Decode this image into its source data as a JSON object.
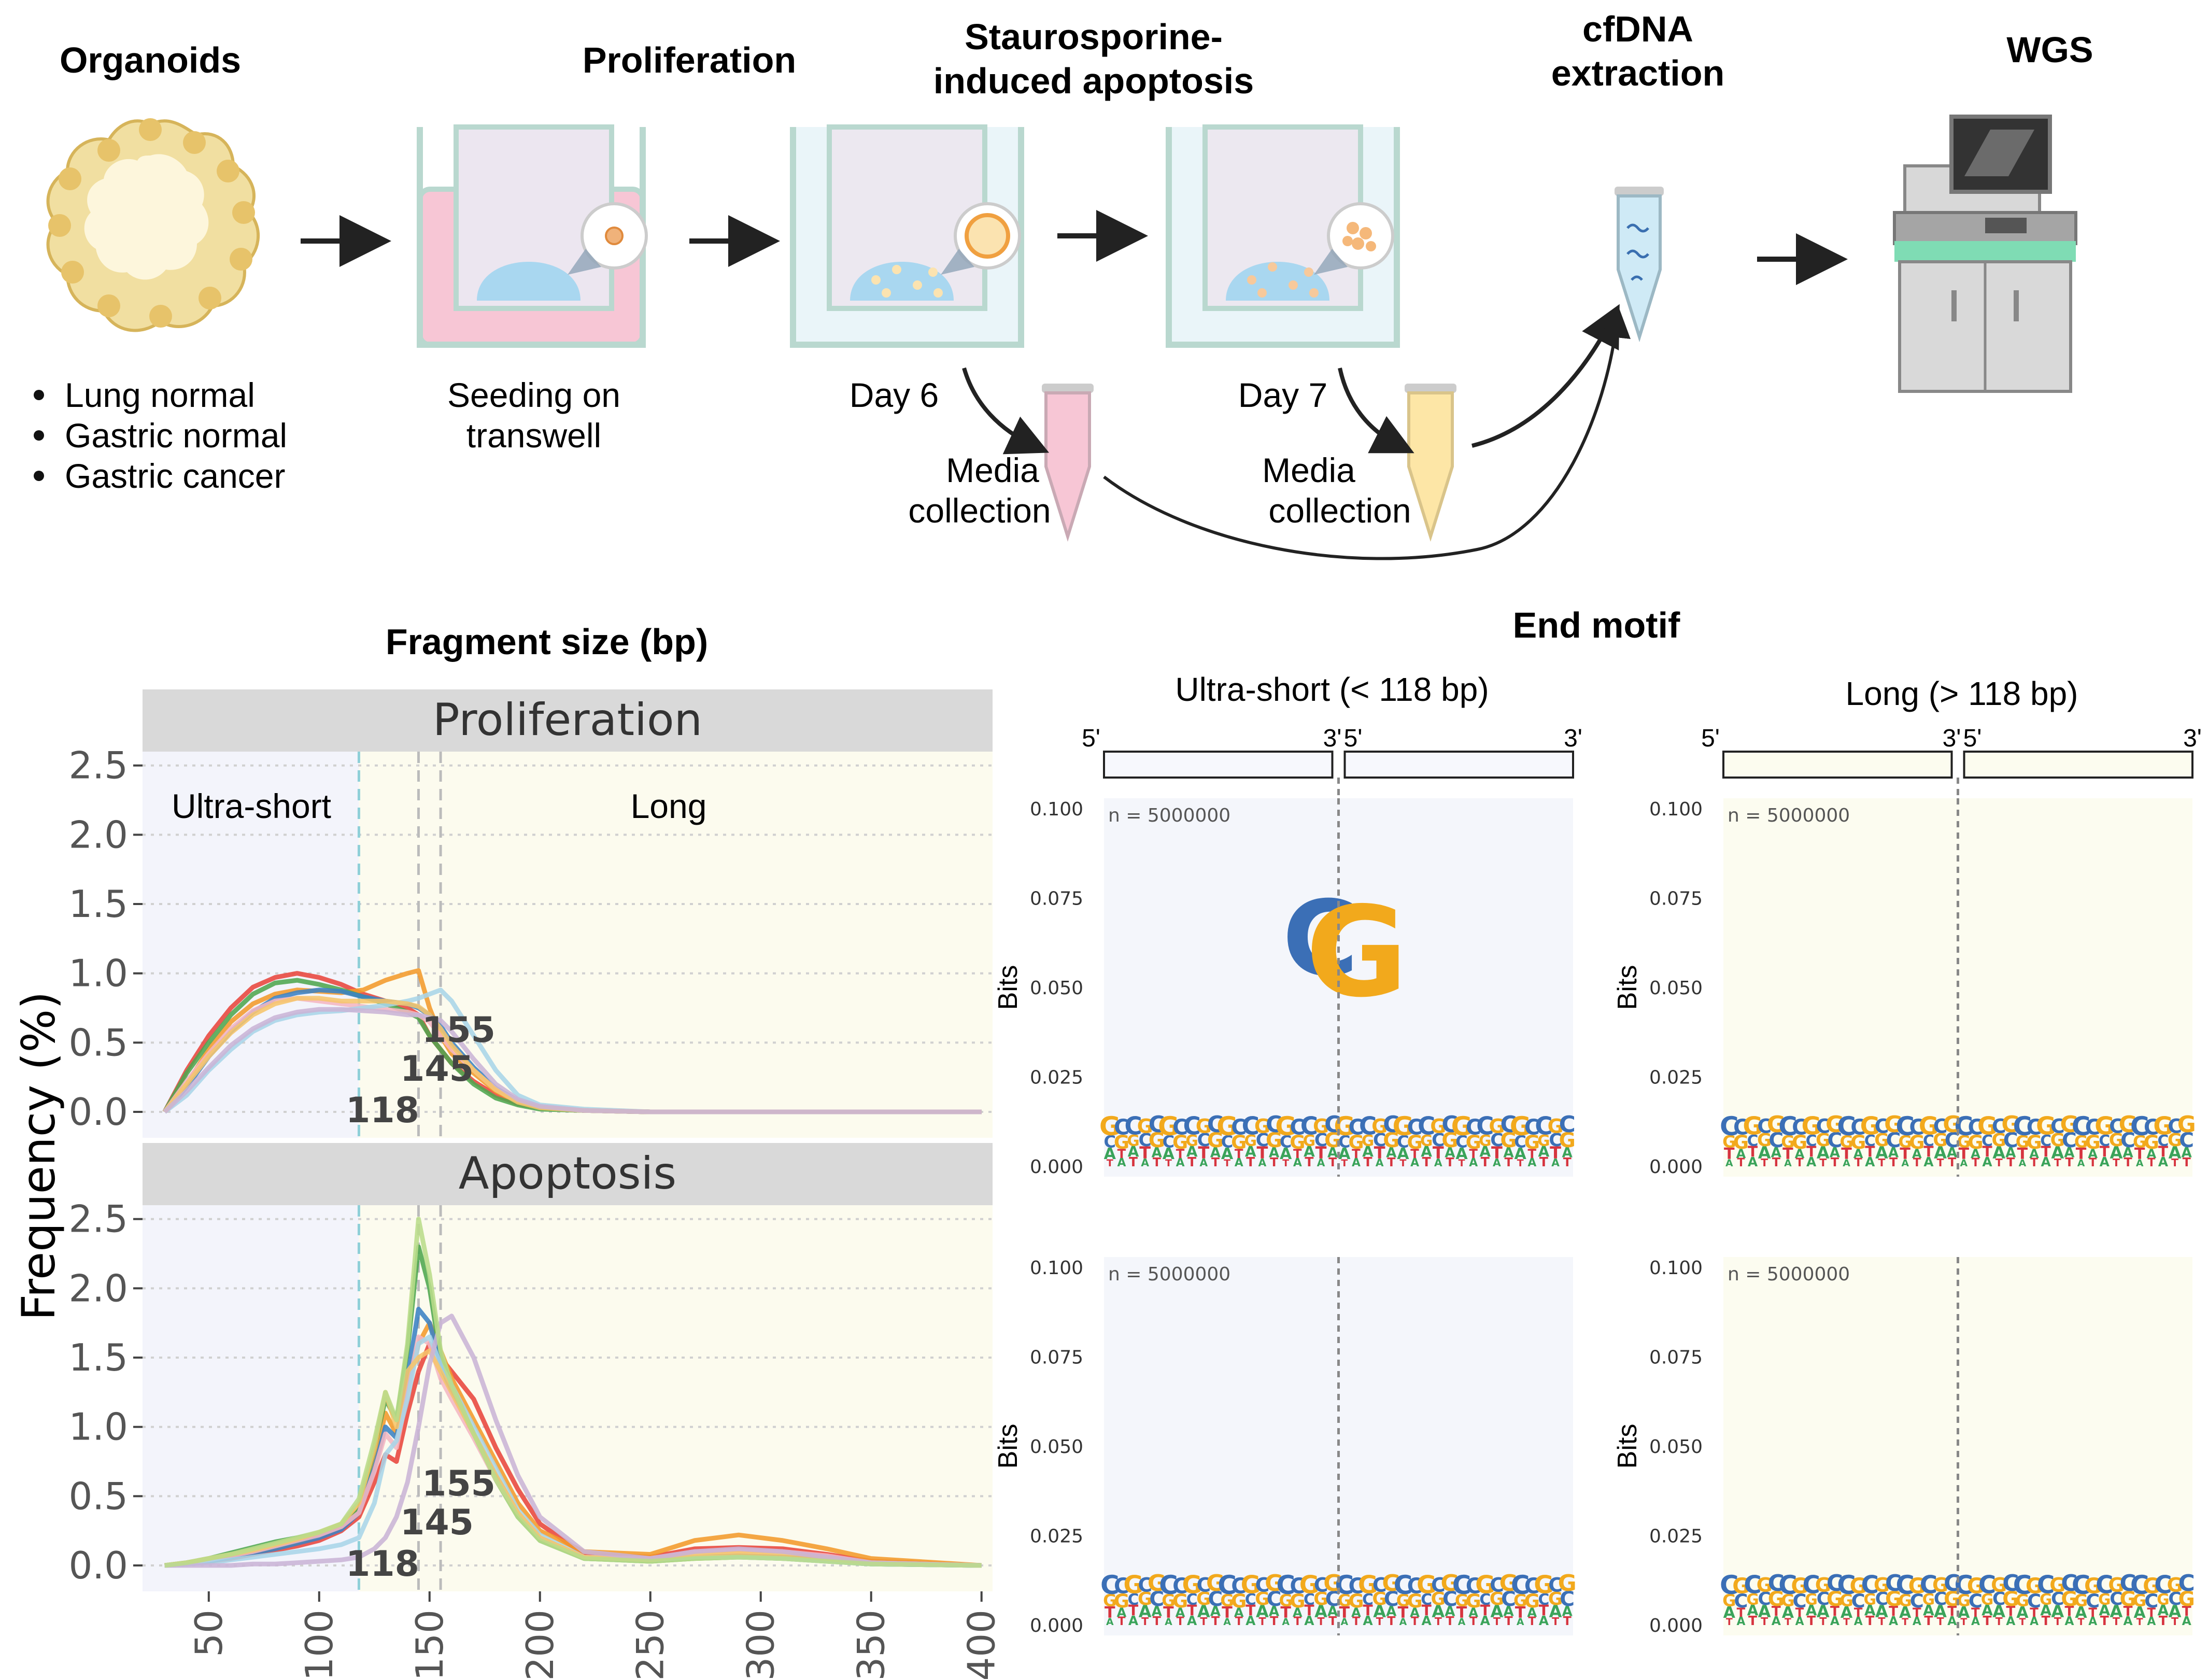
{
  "workflow": {
    "steps": [
      {
        "title": "Organoids"
      },
      {
        "title": "Proliferation",
        "caption1": "Seeding on",
        "caption2": "transwell"
      },
      {
        "title1": "Staurosporine-",
        "title2": "induced apoptosis",
        "day": "Day 6"
      },
      {
        "day": "Day 7"
      },
      {
        "title1": "cfDNA",
        "title2": "extraction"
      },
      {
        "title": "WGS"
      }
    ],
    "organoid_types": [
      "Lung normal",
      "Gastric normal",
      "Gastric cancer"
    ],
    "media1": [
      "Media",
      "collection"
    ],
    "media2": [
      "Media",
      "collection"
    ]
  },
  "fragment": {
    "title": "Fragment size (bp)",
    "ylabel": "Frequency (%)",
    "region_short": "Ultra-short",
    "region_long": "Long",
    "cutoffs": [
      118,
      145,
      155
    ],
    "cutoff_labels": [
      "118",
      "145",
      "155"
    ],
    "x_ticks": [
      "50",
      "100",
      "150",
      "200",
      "250",
      "300",
      "350",
      "400"
    ],
    "y_ticks": [
      "0.0",
      "0.5",
      "1.0",
      "1.5",
      "2.0",
      "2.5"
    ],
    "series_colors": [
      "#e8463c",
      "#f39a2b",
      "#4fa64f",
      "#3b82c4",
      "#f4b6c2",
      "#a9d5e8",
      "#f6c56b",
      "#c9b4d6",
      "#b9dc8a"
    ]
  },
  "endmotif": {
    "title": "End motif",
    "col_titles": [
      "Ultra-short (< 118 bp)",
      "Long (> 118 bp)"
    ],
    "end5": "5'",
    "end3": "3'",
    "ylabel": "Bits",
    "yticks": [
      "0.100",
      "0.075",
      "0.050",
      "0.025",
      "0.000"
    ],
    "n_label": "n = 5000000",
    "base_colors": {
      "A": "#3aa35a",
      "C": "#3b6fb6",
      "G": "#f2a91c",
      "T": "#d6343f"
    }
  },
  "chart_data": [
    {
      "type": "line",
      "title": "Proliferation",
      "xlabel": "",
      "ylabel": "Frequency (%)",
      "xlim": [
        20,
        405
      ],
      "ylim": [
        0,
        2.6
      ],
      "grid": true,
      "x": [
        30,
        40,
        50,
        60,
        70,
        80,
        90,
        100,
        110,
        120,
        130,
        140,
        145,
        150,
        155,
        160,
        170,
        180,
        190,
        200,
        220,
        250,
        300,
        350,
        400
      ],
      "series": [
        {
          "values": [
            0,
            0.3,
            0.55,
            0.75,
            0.9,
            0.97,
            1.0,
            0.97,
            0.92,
            0.85,
            0.8,
            0.75,
            0.7,
            0.55,
            0.45,
            0.35,
            0.22,
            0.12,
            0.06,
            0.03,
            0.01,
            0,
            0,
            0,
            0
          ]
        },
        {
          "values": [
            0,
            0.2,
            0.45,
            0.65,
            0.78,
            0.85,
            0.88,
            0.87,
            0.86,
            0.88,
            0.95,
            1.0,
            1.02,
            0.75,
            0.55,
            0.42,
            0.28,
            0.15,
            0.07,
            0.03,
            0.01,
            0,
            0,
            0,
            0
          ]
        },
        {
          "values": [
            0,
            0.28,
            0.5,
            0.7,
            0.85,
            0.93,
            0.95,
            0.92,
            0.88,
            0.83,
            0.78,
            0.72,
            0.68,
            0.55,
            0.45,
            0.35,
            0.2,
            0.1,
            0.05,
            0.02,
            0.01,
            0,
            0,
            0,
            0
          ]
        },
        {
          "values": [
            0,
            0.18,
            0.4,
            0.58,
            0.72,
            0.82,
            0.86,
            0.88,
            0.87,
            0.83,
            0.8,
            0.78,
            0.75,
            0.7,
            0.62,
            0.5,
            0.32,
            0.17,
            0.08,
            0.04,
            0.01,
            0,
            0,
            0,
            0
          ]
        },
        {
          "values": [
            0,
            0.22,
            0.42,
            0.6,
            0.73,
            0.8,
            0.82,
            0.8,
            0.78,
            0.76,
            0.74,
            0.72,
            0.7,
            0.65,
            0.55,
            0.45,
            0.3,
            0.16,
            0.08,
            0.04,
            0.01,
            0,
            0,
            0,
            0
          ]
        },
        {
          "values": [
            0,
            0.12,
            0.3,
            0.45,
            0.58,
            0.66,
            0.7,
            0.72,
            0.73,
            0.75,
            0.77,
            0.8,
            0.82,
            0.85,
            0.88,
            0.8,
            0.55,
            0.3,
            0.12,
            0.05,
            0.02,
            0,
            0,
            0,
            0
          ]
        },
        {
          "values": [
            0,
            0.2,
            0.4,
            0.57,
            0.7,
            0.78,
            0.82,
            0.82,
            0.8,
            0.8,
            0.8,
            0.78,
            0.76,
            0.7,
            0.6,
            0.48,
            0.3,
            0.16,
            0.07,
            0.03,
            0.01,
            0,
            0,
            0,
            0
          ]
        },
        {
          "values": [
            0,
            0.15,
            0.32,
            0.48,
            0.6,
            0.68,
            0.72,
            0.74,
            0.74,
            0.73,
            0.72,
            0.7,
            0.7,
            0.68,
            0.66,
            0.58,
            0.38,
            0.2,
            0.09,
            0.04,
            0.01,
            0,
            0,
            0,
            0
          ]
        }
      ]
    },
    {
      "type": "line",
      "title": "Apoptosis",
      "xlabel": "",
      "ylabel": "Frequency (%)",
      "xlim": [
        20,
        405
      ],
      "ylim": [
        0,
        2.6
      ],
      "grid": true,
      "x": [
        30,
        40,
        50,
        60,
        70,
        80,
        90,
        100,
        110,
        118,
        125,
        130,
        135,
        140,
        145,
        150,
        155,
        160,
        170,
        180,
        190,
        200,
        220,
        250,
        270,
        290,
        310,
        330,
        350,
        400
      ],
      "series": [
        {
          "values": [
            0,
            0.01,
            0.03,
            0.05,
            0.08,
            0.11,
            0.14,
            0.18,
            0.25,
            0.35,
            0.6,
            0.8,
            0.75,
            1.1,
            1.4,
            1.6,
            1.5,
            1.4,
            1.2,
            0.85,
            0.55,
            0.3,
            0.08,
            0.06,
            0.12,
            0.13,
            0.12,
            0.08,
            0.03,
            0
          ]
        },
        {
          "values": [
            0,
            0.02,
            0.04,
            0.07,
            0.1,
            0.13,
            0.17,
            0.22,
            0.3,
            0.42,
            0.75,
            1.1,
            0.95,
            1.3,
            1.6,
            1.75,
            1.55,
            1.35,
            1.05,
            0.75,
            0.45,
            0.25,
            0.1,
            0.08,
            0.18,
            0.22,
            0.18,
            0.12,
            0.05,
            0
          ]
        },
        {
          "values": [
            0,
            0.02,
            0.05,
            0.09,
            0.13,
            0.17,
            0.2,
            0.23,
            0.28,
            0.4,
            0.85,
            1.2,
            1.05,
            1.55,
            2.3,
            2.0,
            1.5,
            1.3,
            0.95,
            0.62,
            0.35,
            0.18,
            0.05,
            0.03,
            0.05,
            0.06,
            0.05,
            0.03,
            0.01,
            0
          ]
        },
        {
          "values": [
            0,
            0.01,
            0.03,
            0.06,
            0.09,
            0.12,
            0.16,
            0.2,
            0.26,
            0.38,
            0.7,
            1.0,
            0.92,
            1.35,
            1.85,
            1.75,
            1.45,
            1.25,
            0.95,
            0.65,
            0.38,
            0.2,
            0.06,
            0.04,
            0.06,
            0.07,
            0.06,
            0.04,
            0.01,
            0
          ]
        },
        {
          "values": [
            0,
            0.02,
            0.04,
            0.07,
            0.1,
            0.14,
            0.18,
            0.22,
            0.28,
            0.38,
            0.68,
            0.95,
            0.85,
            1.25,
            1.65,
            1.6,
            1.35,
            1.2,
            0.92,
            0.62,
            0.38,
            0.2,
            0.06,
            0.05,
            0.1,
            0.11,
            0.1,
            0.07,
            0.02,
            0
          ]
        },
        {
          "values": [
            0,
            0.01,
            0.02,
            0.04,
            0.06,
            0.08,
            0.1,
            0.12,
            0.15,
            0.2,
            0.45,
            0.8,
            0.9,
            1.2,
            1.6,
            1.65,
            1.45,
            1.3,
            1.0,
            0.7,
            0.4,
            0.22,
            0.06,
            0.04,
            0.06,
            0.06,
            0.05,
            0.03,
            0.01,
            0
          ]
        },
        {
          "values": [
            0,
            0.02,
            0.05,
            0.08,
            0.11,
            0.15,
            0.19,
            0.24,
            0.3,
            0.45,
            0.85,
            1.25,
            1.0,
            1.4,
            1.5,
            1.55,
            1.4,
            1.25,
            0.95,
            0.65,
            0.38,
            0.2,
            0.06,
            0.04,
            0.08,
            0.09,
            0.08,
            0.05,
            0.02,
            0
          ]
        },
        {
          "values": [
            0,
            0,
            0,
            0,
            0.01,
            0.01,
            0.02,
            0.03,
            0.04,
            0.06,
            0.12,
            0.2,
            0.35,
            0.6,
            1.0,
            1.45,
            1.75,
            1.8,
            1.5,
            1.05,
            0.65,
            0.35,
            0.1,
            0.05,
            0.1,
            0.12,
            0.1,
            0.06,
            0.02,
            0
          ]
        },
        {
          "values": [
            0,
            0.02,
            0.05,
            0.08,
            0.12,
            0.16,
            0.2,
            0.24,
            0.3,
            0.48,
            0.9,
            1.25,
            1.05,
            1.6,
            2.5,
            2.1,
            1.55,
            1.3,
            0.95,
            0.62,
            0.35,
            0.18,
            0.05,
            0.03,
            0.05,
            0.06,
            0.05,
            0.03,
            0.01,
            0
          ]
        }
      ]
    }
  ]
}
